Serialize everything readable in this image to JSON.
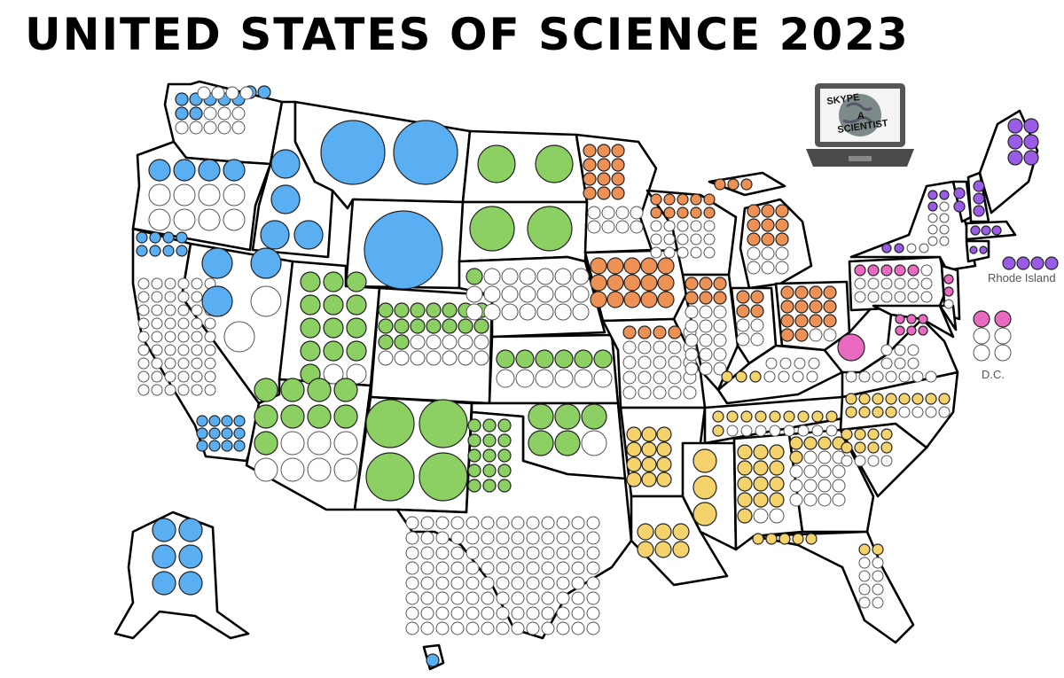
{
  "title": "UNITED STATES OF SCIENCE 2023",
  "logo": {
    "text_lines": [
      "SKYPE",
      "A",
      "SCIENTIST"
    ],
    "icon": "laptop-globe-icon"
  },
  "callouts": {
    "rhode_island": {
      "label": "Rhode Island",
      "color": "purple",
      "filled": 4,
      "total": 4
    },
    "dc": {
      "label": "D.C.",
      "color": "pink",
      "filled": 2,
      "total": 6
    }
  },
  "colors": {
    "blue": "#5aaef2",
    "green": "#8ccf63",
    "orange": "#ee9154",
    "purple": "#9a5ce6",
    "pink": "#e96ac0",
    "yellow": "#f5d36c",
    "empty": "#ffffff"
  },
  "states": [
    {
      "name": "Washington",
      "color": "blue"
    },
    {
      "name": "Oregon",
      "color": "blue"
    },
    {
      "name": "California",
      "color": "blue"
    },
    {
      "name": "Idaho",
      "color": "blue"
    },
    {
      "name": "Nevada",
      "color": "blue"
    },
    {
      "name": "Montana",
      "color": "blue"
    },
    {
      "name": "Wyoming",
      "color": "blue"
    },
    {
      "name": "Alaska",
      "color": "blue"
    },
    {
      "name": "Hawaii",
      "color": "blue"
    },
    {
      "name": "Utah",
      "color": "green"
    },
    {
      "name": "Arizona",
      "color": "green"
    },
    {
      "name": "Colorado",
      "color": "green"
    },
    {
      "name": "New Mexico",
      "color": "green"
    },
    {
      "name": "North Dakota",
      "color": "green"
    },
    {
      "name": "South Dakota",
      "color": "green"
    },
    {
      "name": "Nebraska",
      "color": "green"
    },
    {
      "name": "Kansas",
      "color": "green"
    },
    {
      "name": "Oklahoma",
      "color": "green"
    },
    {
      "name": "Texas",
      "color": "green"
    },
    {
      "name": "Minnesota",
      "color": "orange"
    },
    {
      "name": "Iowa",
      "color": "orange"
    },
    {
      "name": "Wisconsin",
      "color": "orange"
    },
    {
      "name": "Michigan",
      "color": "orange"
    },
    {
      "name": "Illinois",
      "color": "orange"
    },
    {
      "name": "Indiana",
      "color": "orange"
    },
    {
      "name": "Ohio",
      "color": "orange"
    },
    {
      "name": "Missouri",
      "color": "orange"
    },
    {
      "name": "Maine",
      "color": "purple"
    },
    {
      "name": "New Hampshire",
      "color": "purple"
    },
    {
      "name": "Vermont",
      "color": "purple"
    },
    {
      "name": "Massachusetts",
      "color": "purple"
    },
    {
      "name": "New York",
      "color": "purple"
    },
    {
      "name": "Connecticut",
      "color": "purple"
    },
    {
      "name": "Rhode Island",
      "color": "purple"
    },
    {
      "name": "Pennsylvania",
      "color": "pink"
    },
    {
      "name": "West Virginia",
      "color": "pink"
    },
    {
      "name": "Maryland",
      "color": "pink"
    },
    {
      "name": "New Jersey",
      "color": "pink"
    },
    {
      "name": "Delaware",
      "color": "pink"
    },
    {
      "name": "D.C.",
      "color": "pink"
    },
    {
      "name": "Arkansas",
      "color": "yellow"
    },
    {
      "name": "Louisiana",
      "color": "yellow"
    },
    {
      "name": "Mississippi",
      "color": "yellow"
    },
    {
      "name": "Alabama",
      "color": "yellow"
    },
    {
      "name": "Tennessee",
      "color": "yellow"
    },
    {
      "name": "Kentucky",
      "color": "yellow"
    },
    {
      "name": "Georgia",
      "color": "yellow"
    },
    {
      "name": "Florida",
      "color": "yellow"
    },
    {
      "name": "South Carolina",
      "color": "yellow"
    },
    {
      "name": "North Carolina",
      "color": "yellow"
    },
    {
      "name": "Virginia",
      "color": "yellow"
    }
  ]
}
